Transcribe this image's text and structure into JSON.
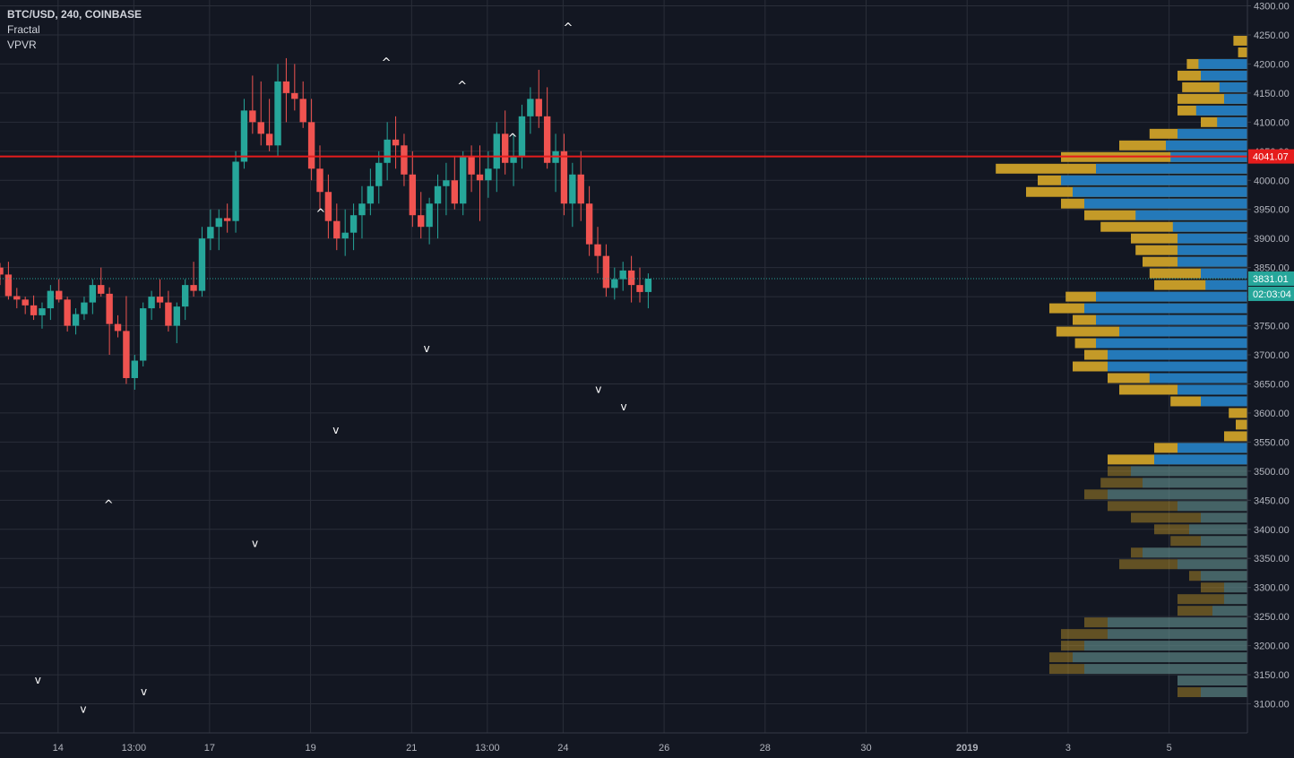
{
  "header": {
    "symbol": "BTC/USD, 240, COINBASE",
    "indicators": [
      "Fractal",
      "VPVR"
    ]
  },
  "colors": {
    "background": "#131722",
    "grid": "#2a2e39",
    "up": "#26a69a",
    "down": "#ef5350",
    "vp_up": "#2479b9",
    "vp_down": "#c49a28",
    "hline": "#e51c1c",
    "text": "#b2b5be"
  },
  "chart_data": {
    "type": "candlestick",
    "title": "BTC/USD, 240, COINBASE",
    "y_axis": {
      "ticks": [
        3100,
        3150,
        3200,
        3250,
        3300,
        3350,
        3400,
        3450,
        3500,
        3550,
        3600,
        3650,
        3700,
        3750,
        3800,
        3850,
        3900,
        3950,
        4000,
        4050,
        4100,
        4150,
        4200,
        4250,
        4300
      ],
      "range": [
        3050,
        4310
      ]
    },
    "x_axis": {
      "ticks": [
        "14",
        "13:00",
        "17",
        "19",
        "21",
        "13:00",
        "24",
        "26",
        "28",
        "30",
        "2019",
        "3",
        "5"
      ],
      "tick_days": [
        14,
        15.5,
        17,
        19,
        21,
        22.5,
        24,
        26,
        28,
        30,
        32,
        34,
        36
      ],
      "range_days": [
        12.85,
        37.55
      ]
    },
    "bar_interval_days": 0.1667,
    "start_day": 12.85,
    "candles": [
      [
        3850,
        3858,
        3820,
        3838
      ],
      [
        3838,
        3860,
        3795,
        3801
      ],
      [
        3801,
        3815,
        3780,
        3795
      ],
      [
        3795,
        3800,
        3770,
        3785
      ],
      [
        3785,
        3802,
        3760,
        3768
      ],
      [
        3768,
        3790,
        3745,
        3780
      ],
      [
        3780,
        3820,
        3760,
        3810
      ],
      [
        3810,
        3830,
        3790,
        3795
      ],
      [
        3795,
        3800,
        3740,
        3750
      ],
      [
        3750,
        3780,
        3735,
        3770
      ],
      [
        3770,
        3800,
        3760,
        3790
      ],
      [
        3790,
        3830,
        3770,
        3820
      ],
      [
        3820,
        3850,
        3800,
        3805
      ],
      [
        3805,
        3816,
        3700,
        3753
      ],
      [
        3753,
        3768,
        3730,
        3741
      ],
      [
        3741,
        3801,
        3650,
        3660
      ],
      [
        3660,
        3700,
        3640,
        3690
      ],
      [
        3690,
        3790,
        3680,
        3780
      ],
      [
        3780,
        3810,
        3760,
        3800
      ],
      [
        3800,
        3830,
        3780,
        3790
      ],
      [
        3790,
        3810,
        3740,
        3750
      ],
      [
        3750,
        3790,
        3720,
        3783
      ],
      [
        3783,
        3830,
        3760,
        3820
      ],
      [
        3820,
        3860,
        3800,
        3810
      ],
      [
        3810,
        3920,
        3800,
        3900
      ],
      [
        3900,
        3950,
        3880,
        3920
      ],
      [
        3920,
        3950,
        3880,
        3935
      ],
      [
        3935,
        3960,
        3910,
        3930
      ],
      [
        3930,
        4050,
        3910,
        4032
      ],
      [
        4032,
        4140,
        4020,
        4120
      ],
      [
        4120,
        4180,
        4080,
        4100
      ],
      [
        4100,
        4170,
        4060,
        4080
      ],
      [
        4080,
        4140,
        4050,
        4060
      ],
      [
        4060,
        4200,
        4040,
        4170
      ],
      [
        4170,
        4210,
        4100,
        4150
      ],
      [
        4150,
        4200,
        4120,
        4140
      ],
      [
        4140,
        4170,
        4090,
        4100
      ],
      [
        4100,
        4140,
        4000,
        4020
      ],
      [
        4020,
        4060,
        3950,
        3980
      ],
      [
        3980,
        4010,
        3900,
        3930
      ],
      [
        3930,
        3960,
        3880,
        3900
      ],
      [
        3900,
        3950,
        3870,
        3910
      ],
      [
        3910,
        3960,
        3880,
        3940
      ],
      [
        3940,
        3990,
        3900,
        3960
      ],
      [
        3960,
        4020,
        3940,
        3990
      ],
      [
        3990,
        4050,
        3960,
        4030
      ],
      [
        4030,
        4100,
        4000,
        4070
      ],
      [
        4070,
        4110,
        4020,
        4060
      ],
      [
        4060,
        4080,
        3990,
        4010
      ],
      [
        4010,
        4050,
        3920,
        3940
      ],
      [
        3940,
        3980,
        3900,
        3920
      ],
      [
        3920,
        3970,
        3890,
        3960
      ],
      [
        3960,
        4010,
        3900,
        3990
      ],
      [
        3990,
        4030,
        3940,
        4000
      ],
      [
        4000,
        4040,
        3950,
        3960
      ],
      [
        3960,
        4050,
        3940,
        4040
      ],
      [
        4040,
        4060,
        3980,
        4010
      ],
      [
        4010,
        4060,
        3930,
        4000
      ],
      [
        4000,
        4050,
        3970,
        4020
      ],
      [
        4020,
        4100,
        3980,
        4080
      ],
      [
        4080,
        4120,
        4010,
        4030
      ],
      [
        4030,
        4080,
        3990,
        4040
      ],
      [
        4040,
        4130,
        4020,
        4110
      ],
      [
        4110,
        4160,
        4080,
        4140
      ],
      [
        4140,
        4190,
        4090,
        4110
      ],
      [
        4110,
        4160,
        4020,
        4030
      ],
      [
        4030,
        4080,
        3980,
        4050
      ],
      [
        4050,
        4080,
        3940,
        3960
      ],
      [
        3960,
        4030,
        3920,
        4010
      ],
      [
        4010,
        4050,
        3930,
        3960
      ],
      [
        3960,
        3990,
        3870,
        3890
      ],
      [
        3890,
        3920,
        3840,
        3870
      ],
      [
        3870,
        3890,
        3800,
        3815
      ],
      [
        3815,
        3850,
        3795,
        3830
      ],
      [
        3830,
        3860,
        3810,
        3845
      ],
      [
        3845,
        3870,
        3790,
        3820
      ],
      [
        3820,
        3850,
        3790,
        3808
      ],
      [
        3808,
        3840,
        3780,
        3831
      ]
    ],
    "fractals_up": [
      [
        15.0,
        3430
      ],
      [
        19.2,
        3930
      ],
      [
        20.5,
        4190
      ],
      [
        22.0,
        4150
      ],
      [
        23.0,
        4060
      ],
      [
        24.1,
        4250
      ]
    ],
    "fractals_down": [
      [
        13.6,
        3150
      ],
      [
        14.5,
        3100
      ],
      [
        15.7,
        3130
      ],
      [
        17.9,
        3385
      ],
      [
        19.5,
        3580
      ],
      [
        21.3,
        3720
      ],
      [
        24.7,
        3650
      ],
      [
        25.2,
        3620
      ]
    ],
    "horizontal_lines": [
      {
        "price": 4041.07,
        "label": "4041.07",
        "style": "solid",
        "color": "#e51c1c"
      },
      {
        "price": 3831.01,
        "label": "3831.01",
        "style": "dotted",
        "color": "#26a69a"
      }
    ],
    "countdown": "02:03:04",
    "volume_profile": {
      "bin_size": 20,
      "rows": [
        [
          4240,
          6,
          0
        ],
        [
          4220,
          4,
          0
        ],
        [
          4200,
          26,
          21
        ],
        [
          4180,
          30,
          20
        ],
        [
          4160,
          28,
          12
        ],
        [
          4140,
          30,
          10
        ],
        [
          4120,
          30,
          22
        ],
        [
          4100,
          20,
          13
        ],
        [
          4080,
          42,
          30
        ],
        [
          4060,
          55,
          35
        ],
        [
          4040,
          80,
          33
        ],
        [
          4020,
          108,
          65
        ],
        [
          4000,
          90,
          80
        ],
        [
          3980,
          95,
          75
        ],
        [
          3960,
          80,
          70
        ],
        [
          3940,
          70,
          48
        ],
        [
          3920,
          63,
          32
        ],
        [
          3900,
          50,
          30
        ],
        [
          3880,
          48,
          30
        ],
        [
          3860,
          45,
          30
        ],
        [
          3840,
          42,
          20
        ],
        [
          3820,
          40,
          18
        ],
        [
          3800,
          78,
          65
        ],
        [
          3780,
          85,
          70
        ],
        [
          3760,
          75,
          65
        ],
        [
          3740,
          82,
          55
        ],
        [
          3720,
          74,
          65
        ],
        [
          3700,
          70,
          60
        ],
        [
          3680,
          75,
          60
        ],
        [
          3660,
          60,
          42
        ],
        [
          3640,
          55,
          30
        ],
        [
          3620,
          33,
          20
        ],
        [
          3600,
          8,
          0
        ],
        [
          3580,
          5,
          0
        ],
        [
          3560,
          10,
          0
        ],
        [
          3540,
          40,
          30
        ],
        [
          3520,
          60,
          40
        ],
        [
          3500,
          60,
          50
        ],
        [
          3480,
          63,
          45
        ],
        [
          3460,
          70,
          60
        ],
        [
          3440,
          60,
          30
        ],
        [
          3420,
          50,
          20
        ],
        [
          3400,
          40,
          25
        ],
        [
          3380,
          33,
          20
        ],
        [
          3360,
          50,
          45
        ],
        [
          3340,
          55,
          30
        ],
        [
          3320,
          25,
          20
        ],
        [
          3300,
          20,
          10
        ],
        [
          3280,
          30,
          10
        ],
        [
          3260,
          30,
          15
        ],
        [
          3240,
          70,
          60
        ],
        [
          3220,
          80,
          60
        ],
        [
          3200,
          80,
          70
        ],
        [
          3180,
          85,
          75
        ],
        [
          3160,
          85,
          70
        ],
        [
          3140,
          30,
          30
        ],
        [
          3120,
          30,
          20
        ]
      ]
    }
  }
}
